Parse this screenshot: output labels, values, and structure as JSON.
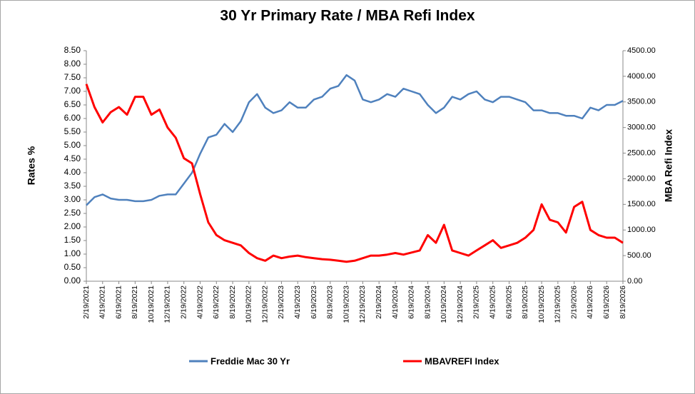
{
  "chart_data": {
    "type": "line",
    "title": "30 Yr Primary Rate / MBA Refi Index",
    "y_label": "Rates %",
    "y2_label": "MBA Refi Index",
    "categories": [
      "2/19/2021",
      null,
      "4/19/2021",
      null,
      "6/19/2021",
      null,
      "8/19/2021",
      null,
      "10/19/2021",
      null,
      "12/19/2021",
      null,
      "2/19/2022",
      null,
      "4/19/2022",
      null,
      "6/19/2022",
      null,
      "8/19/2022",
      null,
      "10/19/2022",
      null,
      "12/19/2022",
      null,
      "2/19/2023",
      null,
      "4/19/2023",
      null,
      "6/19/2023",
      null,
      "8/19/2023",
      null,
      "10/19/2023",
      null,
      "12/19/2023",
      null,
      "2/19/2024",
      null,
      "4/19/2024",
      null,
      "6/19/2024",
      null,
      "8/19/2024",
      null,
      "10/19/2024",
      null,
      "12/19/2024",
      null,
      "2/19/2025",
      null,
      "4/19/2025",
      null,
      "6/19/2025",
      null,
      "8/19/2025",
      null,
      "10/19/2025",
      null,
      "12/19/2025",
      null,
      "2/19/2026",
      null,
      "4/19/2026",
      null,
      "6/19/2026",
      null,
      "8/19/2026"
    ],
    "series": [
      {
        "name": "Freddie Mac 30 Yr",
        "color": "#4f81bd",
        "axis": "y",
        "values": [
          2.8,
          3.1,
          3.2,
          3.05,
          3.0,
          3.0,
          2.95,
          2.95,
          3.0,
          3.15,
          3.2,
          3.2,
          3.6,
          4.0,
          4.7,
          5.3,
          5.4,
          5.8,
          5.5,
          5.9,
          6.6,
          6.9,
          6.4,
          6.2,
          6.3,
          6.6,
          6.4,
          6.4,
          6.7,
          6.8,
          7.1,
          7.2,
          7.6,
          7.4,
          6.7,
          6.6,
          6.7,
          6.9,
          6.8,
          7.1,
          7.0,
          6.9,
          6.5,
          6.2,
          6.4,
          6.8,
          6.7,
          6.9,
          7.0,
          6.7,
          6.6,
          6.8,
          6.8,
          6.7,
          6.6,
          6.3,
          6.3,
          6.2,
          6.2,
          6.1,
          6.1,
          6.0,
          6.4,
          6.3,
          6.5,
          6.5,
          6.65
        ]
      },
      {
        "name": "MBAVREFI Index",
        "color": "#ff0000",
        "axis": "y2",
        "values": [
          3850,
          3400,
          3100,
          3300,
          3400,
          3250,
          3600,
          3600,
          3250,
          3350,
          3000,
          2800,
          2400,
          2300,
          1700,
          1150,
          900,
          800,
          750,
          700,
          550,
          450,
          400,
          500,
          450,
          480,
          500,
          470,
          450,
          430,
          420,
          400,
          380,
          400,
          450,
          500,
          500,
          520,
          550,
          520,
          560,
          600,
          900,
          750,
          1100,
          600,
          550,
          500,
          600,
          700,
          800,
          650,
          700,
          750,
          850,
          1000,
          1500,
          1200,
          1150,
          950,
          1450,
          1550,
          1000,
          900,
          850,
          850,
          750
        ]
      }
    ],
    "ylim": [
      0,
      8.5
    ],
    "yticks": [
      {
        "value": 0,
        "label": "0.00"
      },
      {
        "value": 0.5,
        "label": "0.50"
      },
      {
        "value": 1,
        "label": "1.00"
      },
      {
        "value": 1.5,
        "label": "1.50"
      },
      {
        "value": 2,
        "label": "2.00"
      },
      {
        "value": 2.5,
        "label": "2.50"
      },
      {
        "value": 3,
        "label": "3.00"
      },
      {
        "value": 3.5,
        "label": "3.50"
      },
      {
        "value": 4,
        "label": "4.00"
      },
      {
        "value": 4.5,
        "label": "4.50"
      },
      {
        "value": 5,
        "label": "5.00"
      },
      {
        "value": 5.5,
        "label": "5.50"
      },
      {
        "value": 6,
        "label": "6.00"
      },
      {
        "value": 6.5,
        "label": "6.50"
      },
      {
        "value": 7,
        "label": "7.00"
      },
      {
        "value": 7.5,
        "label": "7.50"
      },
      {
        "value": 8,
        "label": "8.00"
      },
      {
        "value": 8.5,
        "label": "8.50"
      }
    ],
    "y2lim": [
      0,
      4500
    ],
    "y2ticks": [
      {
        "value": 0,
        "label": "0.00"
      },
      {
        "value": 500,
        "label": "500.00"
      },
      {
        "value": 1000,
        "label": "1000.00"
      },
      {
        "value": 1500,
        "label": "1500.00"
      },
      {
        "value": 2000,
        "label": "2000.00"
      },
      {
        "value": 2500,
        "label": "2500.00"
      },
      {
        "value": 3000,
        "label": "3000.00"
      },
      {
        "value": 3500,
        "label": "3500.00"
      },
      {
        "value": 4000,
        "label": "4000.00"
      },
      {
        "value": 4500,
        "label": "4500.00"
      }
    ],
    "grid": false,
    "legend": "bottom"
  }
}
